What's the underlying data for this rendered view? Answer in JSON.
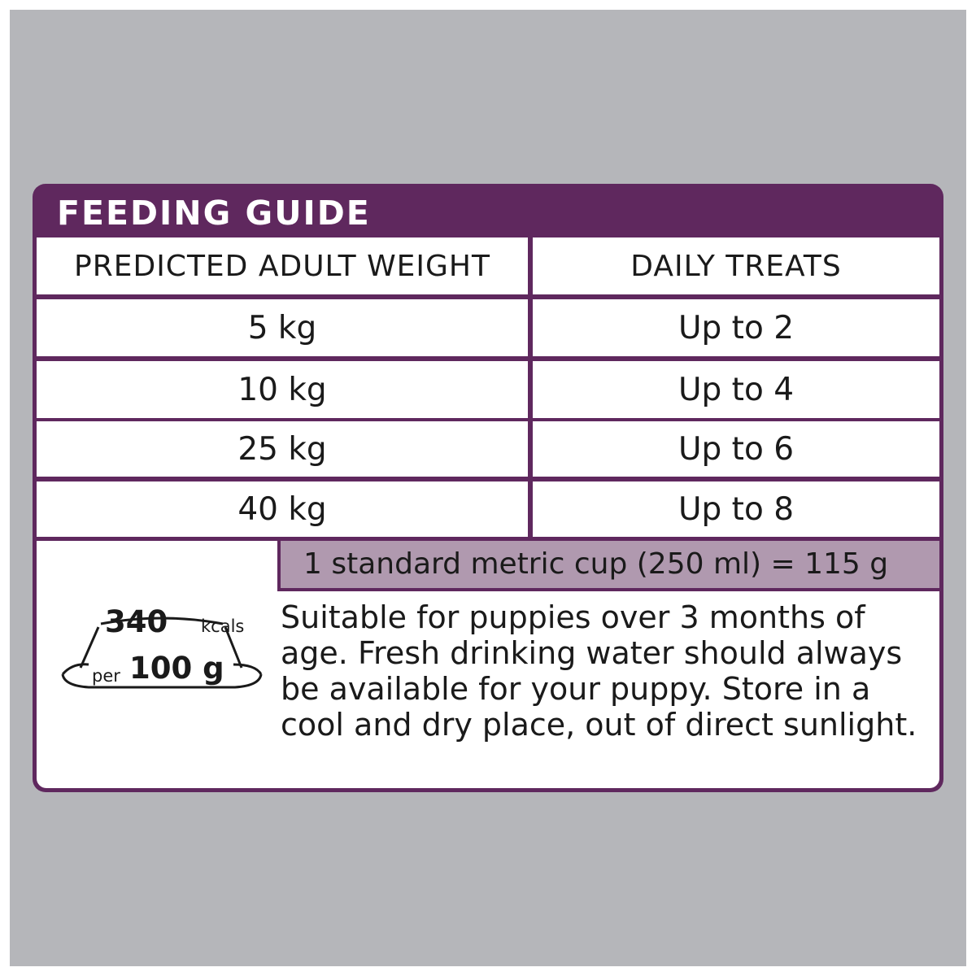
{
  "feeding_guide": {
    "title": "FEEDING GUIDE",
    "columns": [
      "PREDICTED ADULT WEIGHT",
      "DAILY TREATS"
    ],
    "rows": [
      {
        "weight": "5 kg",
        "treats": "Up to 2"
      },
      {
        "weight": "10 kg",
        "treats": "Up to 4"
      },
      {
        "weight": "25 kg",
        "treats": "Up to 6"
      },
      {
        "weight": "40 kg",
        "treats": "Up to 8"
      }
    ]
  },
  "cup_measure": "1 standard metric cup (250 ml) = 115 g",
  "energy": {
    "value": "340",
    "unit": "kcals",
    "per": "per",
    "amount": "100 g"
  },
  "description": "Suitable for puppies over 3 months of age. Fresh drinking water should always be available for your puppy. Store in a cool and dry place, out of direct sunlight.",
  "colors": {
    "frame": "#5f285e",
    "cup_bar": "#b099af",
    "background": "#b5b6ba",
    "text": "#1a1a1a"
  },
  "icons": {
    "energy": "food-bowl-icon"
  }
}
